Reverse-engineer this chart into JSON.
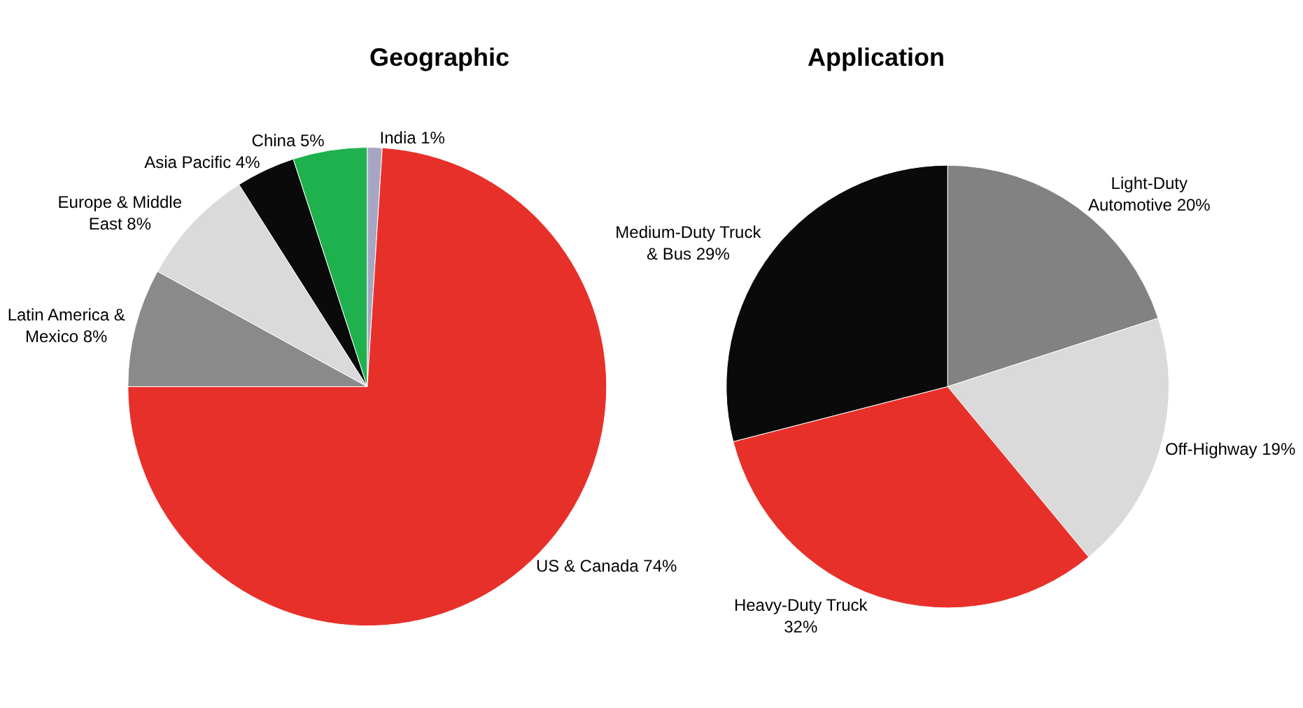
{
  "chart_data": [
    {
      "type": "pie",
      "title": "Geographic",
      "categories": [
        "India",
        "US & Canada",
        "Latin America & Mexico",
        "Europe & Middle East",
        "Asia Pacific",
        "China"
      ],
      "values": [
        1,
        74,
        8,
        8,
        4,
        5
      ],
      "value_labels": [
        "1%",
        "74%",
        "8%",
        "8%",
        "4%",
        "5%"
      ],
      "colors": [
        "#a6a6c4",
        "#e8302a",
        "#8a8a8a",
        "#dadada",
        "#0a0a0a",
        "#1fb14e"
      ]
    },
    {
      "type": "pie",
      "title": "Application",
      "categories": [
        "Light-Duty Automotive",
        "Off-Highway",
        "Heavy-Duty Truck",
        "Medium-Duty Truck & Bus"
      ],
      "values": [
        20,
        19,
        32,
        29
      ],
      "value_labels": [
        "20%",
        "19%",
        "32%",
        "29%"
      ],
      "colors": [
        "#828282",
        "#dadada",
        "#e8302a",
        "#0a0a0a"
      ]
    }
  ]
}
